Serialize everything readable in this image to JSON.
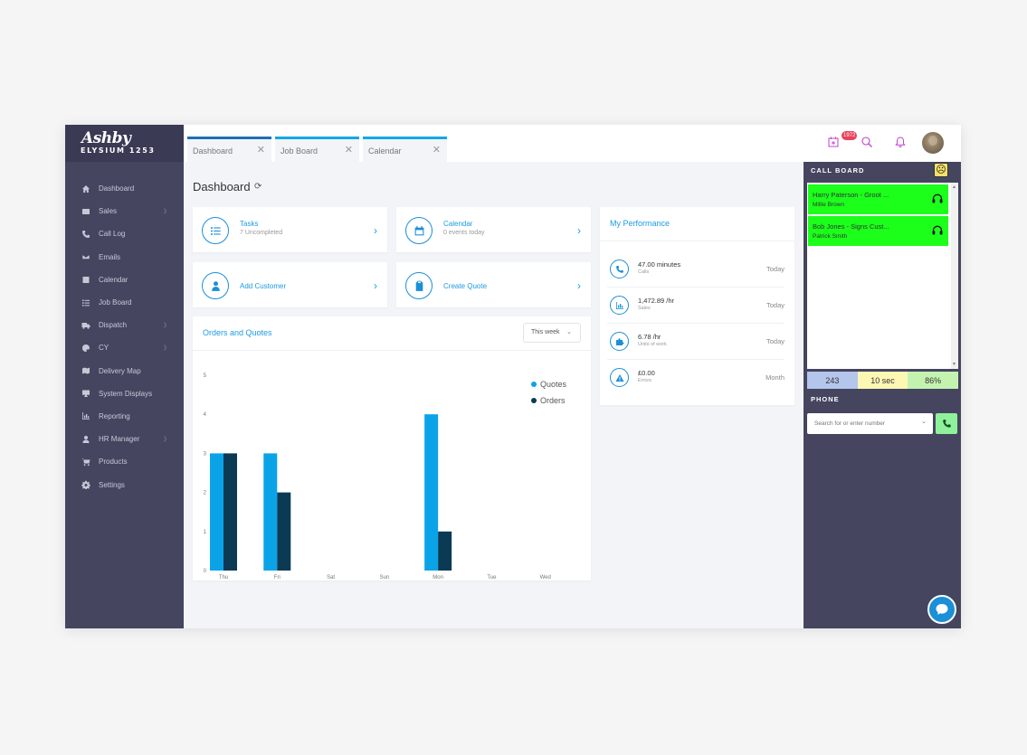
{
  "brand": {
    "name": "Ashby",
    "subtitle": "ELYSIUM 1253"
  },
  "sidebar": {
    "items": [
      {
        "label": "Dashboard",
        "icon": "home-icon",
        "has_submenu": false
      },
      {
        "label": "Sales",
        "icon": "table-icon",
        "has_submenu": true
      },
      {
        "label": "Call Log",
        "icon": "phone-icon",
        "has_submenu": false
      },
      {
        "label": "Emails",
        "icon": "envelope-icon",
        "has_submenu": false
      },
      {
        "label": "Calendar",
        "icon": "calendar-icon",
        "has_submenu": false
      },
      {
        "label": "Job Board",
        "icon": "tasks-icon",
        "has_submenu": false
      },
      {
        "label": "Dispatch",
        "icon": "truck-icon",
        "has_submenu": true
      },
      {
        "label": "CY",
        "icon": "palette-icon",
        "has_submenu": true
      },
      {
        "label": "Delivery Map",
        "icon": "map-icon",
        "has_submenu": false
      },
      {
        "label": "System Displays",
        "icon": "monitor-icon",
        "has_submenu": false
      },
      {
        "label": "Reporting",
        "icon": "bar-chart-icon",
        "has_submenu": false
      },
      {
        "label": "HR Manager",
        "icon": "user-icon",
        "has_submenu": true
      },
      {
        "label": "Products",
        "icon": "cart-icon",
        "has_submenu": false
      },
      {
        "label": "Settings",
        "icon": "gear-icon",
        "has_submenu": false
      }
    ]
  },
  "tabs": [
    {
      "label": "Dashboard",
      "accent": "#1f6fb5"
    },
    {
      "label": "Job Board",
      "accent": "#11a8e9"
    },
    {
      "label": "Calendar",
      "accent": "#11a8e9"
    }
  ],
  "topbar": {
    "notification_count": "1972",
    "icons": [
      "add-calendar-icon",
      "search-icon",
      "bell-icon"
    ]
  },
  "page": {
    "title": "Dashboard"
  },
  "quick_cards": [
    {
      "title": "Tasks",
      "subtitle": "7 Uncompleted",
      "icon": "list-icon"
    },
    {
      "title": "Calendar",
      "subtitle": "0 events today",
      "icon": "calendar-icon"
    },
    {
      "title": "Add Customer",
      "subtitle": "",
      "icon": "user-icon"
    },
    {
      "title": "Create Quote",
      "subtitle": "",
      "icon": "clipboard-icon"
    }
  ],
  "chart_panel": {
    "title": "Orders and Quotes",
    "range_select": "This week"
  },
  "chart_data": {
    "type": "bar",
    "categories": [
      "Thu",
      "Fri",
      "Sat",
      "Sun",
      "Mon",
      "Tue",
      "Wed"
    ],
    "series": [
      {
        "name": "Quotes",
        "color": "#0aa3e8",
        "values": [
          3,
          3,
          0,
          0,
          4,
          0,
          0
        ]
      },
      {
        "name": "Orders",
        "color": "#0b3a55",
        "values": [
          3,
          2,
          0,
          0,
          1,
          0,
          0
        ]
      }
    ],
    "ylim": [
      0,
      5
    ],
    "yticks": [
      0,
      1,
      2,
      3,
      4,
      5
    ],
    "legend": "top-right",
    "grid": false
  },
  "performance": {
    "title": "My Performance",
    "rows": [
      {
        "value": "47.00 minutes",
        "label": "Calls",
        "period": "Today",
        "icon": "phone-icon"
      },
      {
        "value": "1,472.89 /hr",
        "label": "Sales",
        "period": "Today",
        "icon": "bar-chart-icon"
      },
      {
        "value": "6.78 /hr",
        "label": "Units of work",
        "period": "Today",
        "icon": "puzzle-icon"
      },
      {
        "value": "£0.00",
        "label": "Errors",
        "period": "Month",
        "icon": "warning-icon"
      }
    ]
  },
  "call_board": {
    "title": "CALL BOARD",
    "mood": "sad-face-icon",
    "calls": [
      {
        "name": "Harry Paterson - Groot ...",
        "agent": "Millie Brown",
        "color": "#1bff1b"
      },
      {
        "name": "Bob Jones - Signs Cust...",
        "agent": "Patrick Smith",
        "color": "#1bff1b"
      }
    ],
    "stats": [
      {
        "value": "243",
        "color": "#b4c6ec"
      },
      {
        "value": "10 sec",
        "color": "#fdf7b4"
      },
      {
        "value": "86%",
        "color": "#c4f3b0"
      }
    ]
  },
  "phone": {
    "title": "PHONE",
    "placeholder": "Search for or enter number"
  }
}
